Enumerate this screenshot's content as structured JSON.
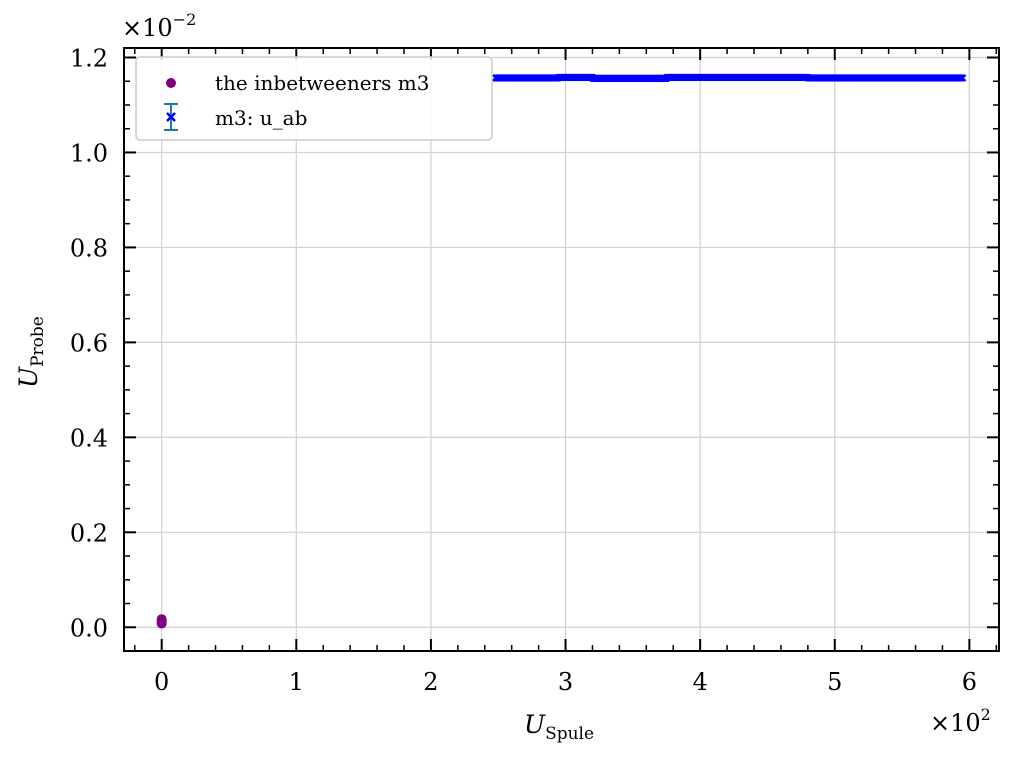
{
  "chart_data": {
    "type": "scatter",
    "x_multiplier": {
      "base": "×10",
      "exponent": "2"
    },
    "y_multiplier": {
      "base": "×10",
      "exponent": "−2"
    },
    "xlabel": {
      "main": "U",
      "sub": "Spule"
    },
    "ylabel": {
      "main": "U",
      "sub": "Probe"
    },
    "xlim": [
      -0.28,
      6.22
    ],
    "ylim": [
      -0.05,
      1.22
    ],
    "xticks": [
      0,
      1,
      2,
      3,
      4,
      5,
      6
    ],
    "xtick_labels": [
      "0",
      "1",
      "2",
      "3",
      "4",
      "5",
      "6"
    ],
    "yticks": [
      0.0,
      0.2,
      0.4,
      0.6,
      0.8,
      1.0,
      1.2
    ],
    "ytick_labels": [
      "0.0",
      "0.2",
      "0.4",
      "0.6",
      "0.8",
      "1.0",
      "1.2"
    ],
    "grid": true,
    "legend_position": "top-left",
    "series": [
      {
        "name": "the inbetweeners m3",
        "marker": "circle",
        "color": "#800080",
        "points": [
          [
            0.0,
            0.008
          ],
          [
            0.0,
            0.011
          ],
          [
            0.0,
            0.014
          ],
          [
            0.0,
            0.017
          ]
        ]
      },
      {
        "name": "m3: u_ab",
        "marker": "x",
        "color": "#0000ff",
        "errorbar_color": "#1f77b4",
        "x_start": 2.48,
        "x_end": 5.95,
        "segments": [
          {
            "x_from": 2.48,
            "x_to": 2.95,
            "y": 1.157
          },
          {
            "x_from": 2.95,
            "x_to": 3.2,
            "y": 1.158
          },
          {
            "x_from": 3.2,
            "x_to": 3.75,
            "y": 1.156
          },
          {
            "x_from": 3.75,
            "x_to": 4.8,
            "y": 1.158
          },
          {
            "x_from": 4.8,
            "x_to": 5.95,
            "y": 1.157
          }
        ]
      }
    ]
  },
  "legend": {
    "items": [
      {
        "label": "the inbetweeners m3"
      },
      {
        "label": "m3: u_ab"
      }
    ]
  }
}
